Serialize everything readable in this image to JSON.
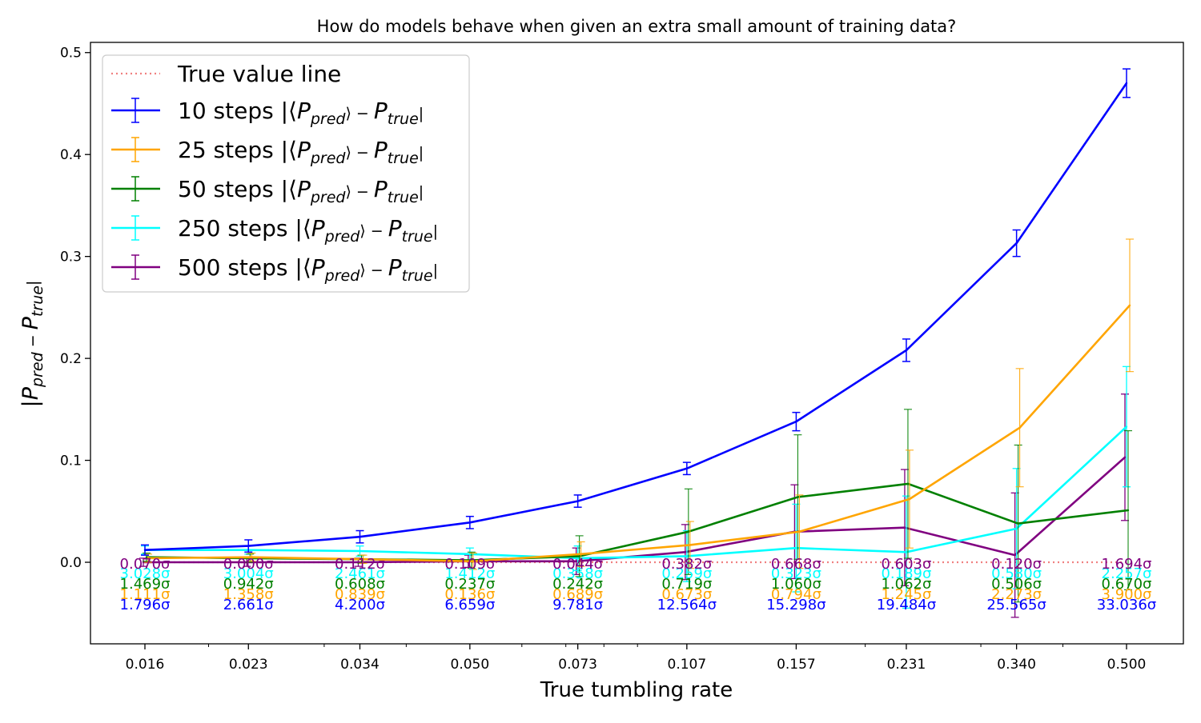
{
  "chart_data": {
    "type": "line",
    "title": "How do models behave when given an extra small amount of training data?",
    "xlabel": "True tumbling rate",
    "ylabel": "|P_pred − P_true|",
    "x_scale": "log",
    "x": [
      0.016,
      0.023,
      0.034,
      0.05,
      0.073,
      0.107,
      0.157,
      0.231,
      0.34,
      0.5
    ],
    "x_tick_labels": [
      "0.016",
      "0.023",
      "0.034",
      "0.050",
      "0.073",
      "0.107",
      "0.157",
      "0.231",
      "0.340",
      "0.500"
    ],
    "ylim": [
      -0.08,
      0.51
    ],
    "y_ticks": [
      0.0,
      0.1,
      0.2,
      0.3,
      0.4,
      0.5
    ],
    "y_tick_labels": [
      "0.0",
      "0.1",
      "0.2",
      "0.3",
      "0.4",
      "0.5"
    ],
    "grid": false,
    "legend": {
      "placement": "top-left"
    },
    "reference_line": {
      "name": "True value line",
      "y": 0.0,
      "color": "#f08080",
      "style": "dotted"
    },
    "series": [
      {
        "name": "10 steps |⟨P_pred⟩ − P_true|",
        "steps_label": "10 steps",
        "color": "#0000ff",
        "values": [
          0.012,
          0.016,
          0.025,
          0.039,
          0.06,
          0.092,
          0.138,
          0.208,
          0.313,
          0.47
        ],
        "errors": [
          0.005,
          0.006,
          0.006,
          0.006,
          0.006,
          0.006,
          0.009,
          0.011,
          0.013,
          0.014
        ],
        "sigma_labels": [
          "1.796σ",
          "2.661σ",
          "4.200σ",
          "6.659σ",
          "9.781σ",
          "12.564σ",
          "15.298σ",
          "19.484σ",
          "25.565σ",
          "33.036σ"
        ]
      },
      {
        "name": "25 steps |⟨P_pred⟩ − P_true|",
        "steps_label": "25 steps",
        "color": "#ffa500",
        "values": [
          0.004,
          0.005,
          0.003,
          0.001,
          0.008,
          0.017,
          0.03,
          0.062,
          0.132,
          0.252
        ],
        "errors": [
          0.004,
          0.004,
          0.004,
          0.008,
          0.012,
          0.023,
          0.036,
          0.048,
          0.058,
          0.065
        ],
        "sigma_labels": [
          "1.111σ",
          "1.358σ",
          "0.839σ",
          "0.136σ",
          "0.689σ",
          "0.673σ",
          "0.794σ",
          "1.245σ",
          "2.273σ",
          "3.900σ"
        ]
      },
      {
        "name": "50 steps |⟨P_pred⟩ − P_true|",
        "steps_label": "50 steps",
        "color": "#008000",
        "values": [
          0.005,
          0.004,
          0.003,
          0.002,
          0.006,
          0.03,
          0.064,
          0.077,
          0.038,
          0.051
        ],
        "errors": [
          0.004,
          0.004,
          0.004,
          0.008,
          0.02,
          0.042,
          0.061,
          0.073,
          0.077,
          0.078
        ],
        "sigma_labels": [
          "1.469σ",
          "0.942σ",
          "0.608σ",
          "0.237σ",
          "0.242σ",
          "0.719σ",
          "1.060σ",
          "1.062σ",
          "0.506σ",
          "0.670σ"
        ]
      },
      {
        "name": "250 steps |⟨P_pred⟩ − P_true|",
        "steps_label": "250 steps",
        "color": "#00ffff",
        "values": [
          0.012,
          0.012,
          0.011,
          0.008,
          0.004,
          0.006,
          0.014,
          0.01,
          0.033,
          0.133
        ],
        "errors": [
          0.004,
          0.004,
          0.005,
          0.006,
          0.012,
          0.025,
          0.043,
          0.055,
          0.059,
          0.059
        ],
        "sigma_labels": [
          "3.028σ",
          "3.004σ",
          "2.461σ",
          "1.412σ",
          "0.358σ",
          "0.259σ",
          "0.323σ",
          "0.189σ",
          "0.580σ",
          "2.257σ"
        ]
      },
      {
        "name": "500 steps |⟨P_pred⟩ − P_true|",
        "steps_label": "500 steps",
        "color": "#800080",
        "values": [
          0.0,
          0.0,
          0.0,
          0.001,
          0.001,
          0.01,
          0.03,
          0.034,
          0.007,
          0.103
        ],
        "errors": [
          0.004,
          0.004,
          0.004,
          0.006,
          0.013,
          0.027,
          0.046,
          0.057,
          0.061,
          0.062
        ],
        "sigma_labels": [
          "0.070σ",
          "0.000σ",
          "0.112σ",
          "0.109σ",
          "0.044σ",
          "0.382σ",
          "0.668σ",
          "0.603σ",
          "0.120σ",
          "1.694σ"
        ]
      }
    ]
  }
}
